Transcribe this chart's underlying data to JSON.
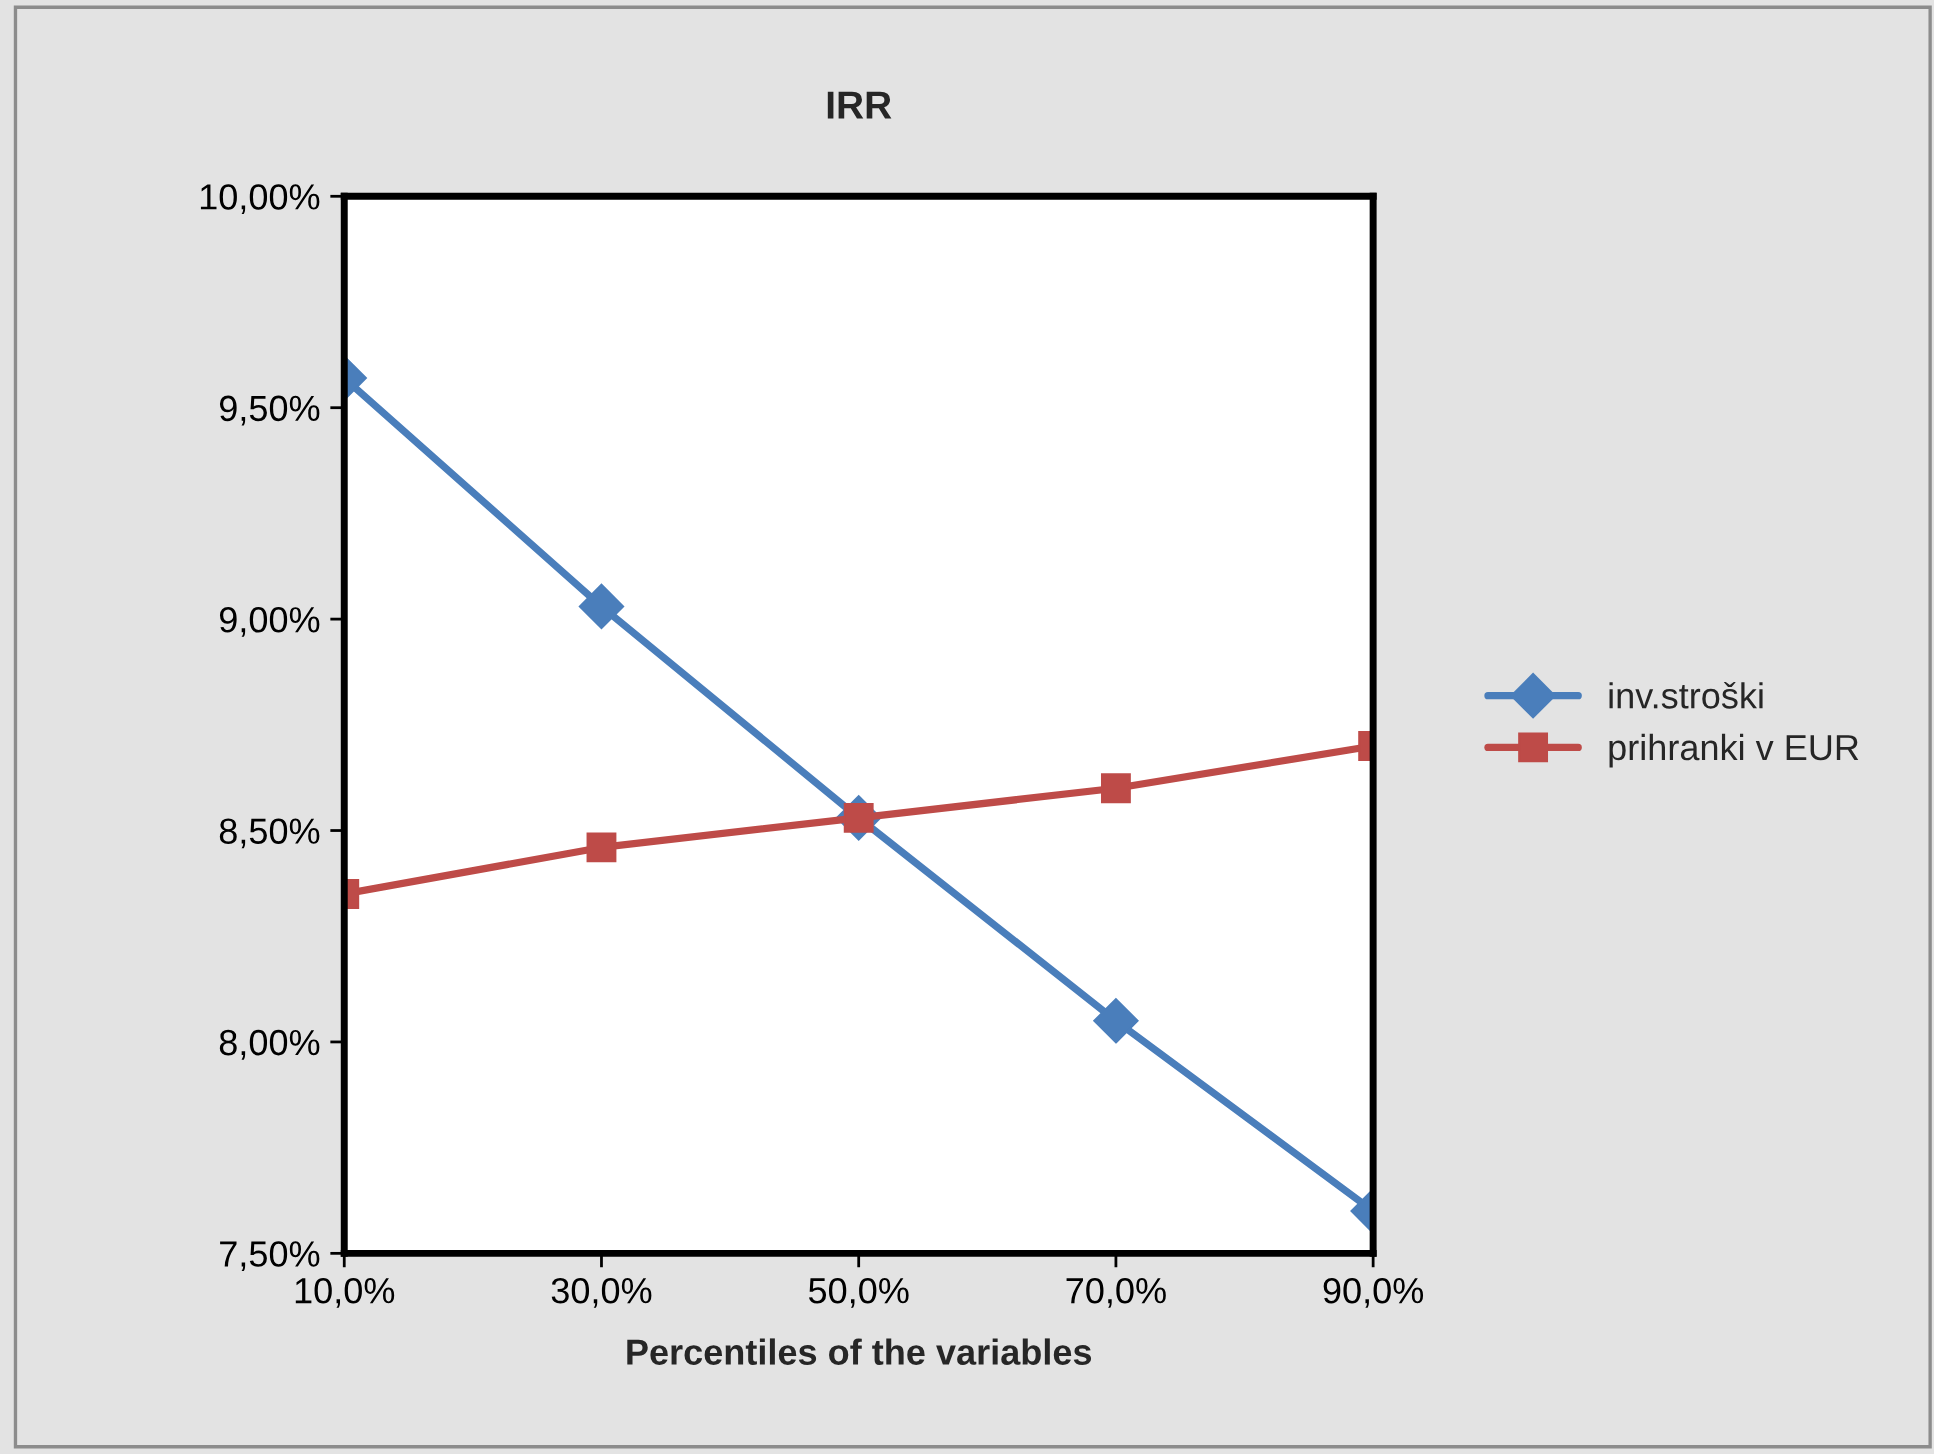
{
  "chart_data": {
    "type": "line",
    "title": "IRR",
    "xlabel": "Percentiles of the variables",
    "categories": [
      "10,0%",
      "30,0%",
      "50,0%",
      "70,0%",
      "90,0%"
    ],
    "series": [
      {
        "name": "inv.stroški",
        "color": "#4a7ebb",
        "marker": "diamond",
        "values": [
          9.57,
          9.03,
          8.53,
          8.05,
          7.6
        ]
      },
      {
        "name": "prihranki v EUR",
        "color": "#be4b48",
        "marker": "square",
        "values": [
          8.35,
          8.46,
          8.53,
          8.6,
          8.7
        ]
      }
    ],
    "ylim": [
      7.5,
      10.0
    ],
    "yticks": [
      {
        "value": 7.5,
        "label": "7,50%"
      },
      {
        "value": 8.0,
        "label": "8,00%"
      },
      {
        "value": 8.5,
        "label": "8,50%"
      },
      {
        "value": 9.0,
        "label": "9,00%"
      },
      {
        "value": 9.5,
        "label": "9,50%"
      },
      {
        "value": 10.0,
        "label": "10,00%"
      }
    ],
    "grid": false,
    "legend": "right",
    "line_style": "solid"
  }
}
